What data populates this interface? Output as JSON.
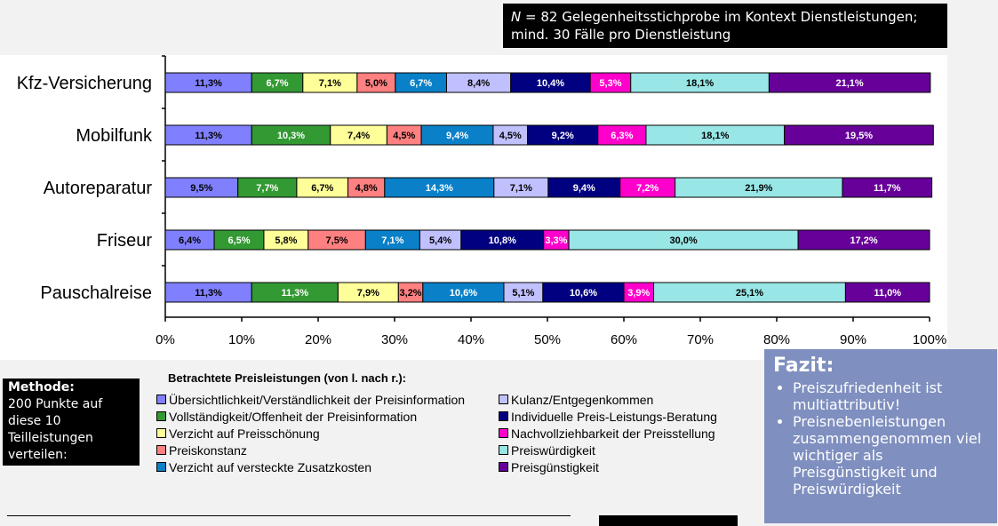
{
  "note": {
    "n_label": "N",
    "text": " = 82 Gelegenheitsstichprobe im Kontext Dienstleistungen; mind. 30 Fälle pro Dienstleistung"
  },
  "method": {
    "title": "Methode:",
    "text": "200 Punkte auf diese 10 Teilleistungen verteilen:"
  },
  "fazit": {
    "title": "Fazit:",
    "points": [
      "Preiszufriedenheit ist multiattributiv!",
      "Preisnebenleistungen zusammengenommen viel wichtiger als Preisgünstigkeit und Preiswürdigkeit"
    ]
  },
  "chart_data": {
    "type": "bar",
    "orientation": "horizontal",
    "stacked": true,
    "xlim": [
      0,
      100
    ],
    "x_ticks": [
      "0%",
      "10%",
      "20%",
      "30%",
      "40%",
      "50%",
      "60%",
      "70%",
      "80%",
      "90%",
      "100%"
    ],
    "legend_title": "Betrachtete Preisleistungen (von l. nach r.):",
    "categories": [
      "Kfz-Versicherung",
      "Mobilfunk",
      "Autoreparatur",
      "Friseur",
      "Pauschalreise"
    ],
    "series": [
      {
        "name": "Übersichtlichkeit/Verständlichkeit der Preisinformation",
        "color": "#8080ff",
        "values": [
          11.3,
          11.3,
          9.5,
          6.4,
          11.3
        ],
        "labels": [
          "11,3%",
          "11,3%",
          "9,5%",
          "6,4%",
          "11,3%"
        ]
      },
      {
        "name": "Vollständigkeit/Offenheit der Preisinformation",
        "color": "#339933",
        "values": [
          6.7,
          10.3,
          7.7,
          6.5,
          11.3
        ],
        "labels": [
          "6,7%",
          "10,3%",
          "7,7%",
          "6,5%",
          "11,3%"
        ]
      },
      {
        "name": "Verzicht auf Preisschönung",
        "color": "#ffff99",
        "values": [
          7.1,
          7.4,
          6.7,
          5.8,
          7.9
        ],
        "labels": [
          "7,1%",
          "7,4%",
          "6,7%",
          "5,8%",
          "7,9%"
        ]
      },
      {
        "name": "Preiskonstanz",
        "color": "#ff8080",
        "values": [
          5.0,
          4.5,
          4.8,
          7.5,
          3.2
        ],
        "labels": [
          "5,0%",
          "4,5%",
          "4,8%",
          "7,5%",
          "3,2%"
        ]
      },
      {
        "name": "Verzicht auf versteckte Zusatzkosten",
        "color": "#0a80c8",
        "values": [
          6.7,
          9.4,
          14.3,
          7.1,
          10.6
        ],
        "labels": [
          "6,7%",
          "9,4%",
          "14,3%",
          "7,1%",
          "10,6%"
        ]
      },
      {
        "name": "Kulanz/Entgegenkommen",
        "color": "#c0c0ff",
        "values": [
          8.4,
          4.5,
          7.1,
          5.4,
          5.1
        ],
        "labels": [
          "8,4%",
          "4,5%",
          "7,1%",
          "5,4%",
          "5,1%"
        ]
      },
      {
        "name": "Individuelle Preis-Leistungs-Beratung",
        "color": "#000080",
        "values": [
          10.4,
          9.2,
          9.4,
          10.8,
          10.6
        ],
        "labels": [
          "10,4%",
          "9,2%",
          "9,4%",
          "10,8%",
          "10,6%"
        ]
      },
      {
        "name": "Nachvollziehbarkeit der Preisstellung",
        "color": "#ff00cc",
        "values": [
          5.3,
          6.3,
          7.2,
          3.3,
          3.9
        ],
        "labels": [
          "5,3%",
          "6,3%",
          "7,2%",
          "3,3%",
          "3,9%"
        ]
      },
      {
        "name": "Preiswürdigkeit",
        "color": "#99e6e6",
        "values": [
          18.1,
          18.1,
          21.9,
          30.0,
          25.1
        ],
        "labels": [
          "18,1%",
          "18,1%",
          "21,9%",
          "30,0%",
          "25,1%"
        ]
      },
      {
        "name": "Preisgünstigkeit",
        "color": "#660099",
        "values": [
          21.1,
          19.5,
          11.7,
          17.2,
          11.0
        ],
        "labels": [
          "21,1%",
          "19,5%",
          "11,7%",
          "17,2%",
          "11,0%"
        ]
      }
    ]
  }
}
